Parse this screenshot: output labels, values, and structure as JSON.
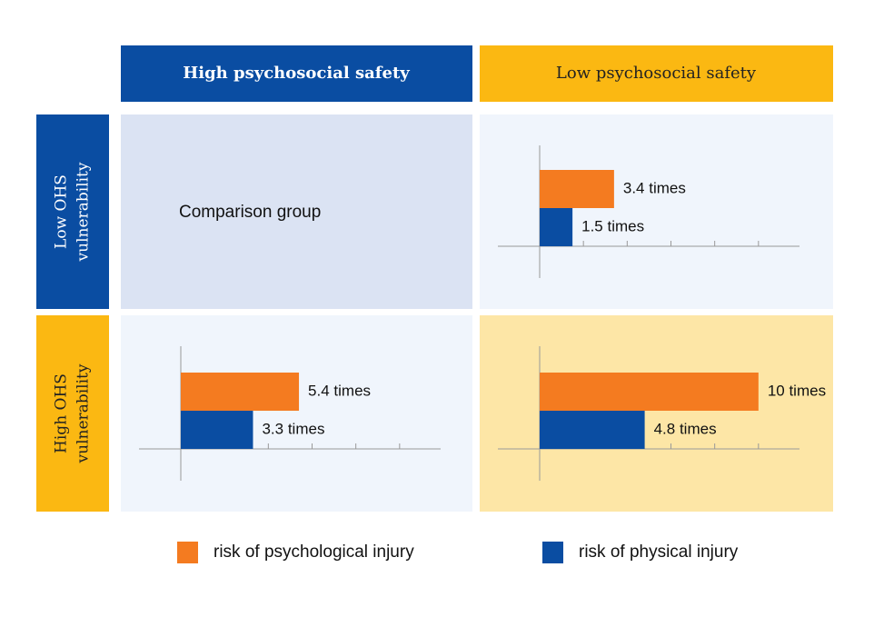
{
  "columns": [
    "High psychosocial safety",
    "Low psychosocial safety"
  ],
  "rows": [
    [
      "Low OHS",
      "vulnerability"
    ],
    [
      "High OHS",
      "vulnerability"
    ]
  ],
  "comparison_label": "Comparison group",
  "legend": [
    {
      "name": "risk of psychological injury",
      "color": "#f47b20"
    },
    {
      "name": "risk of physical injury",
      "color": "#0a4da2"
    }
  ],
  "chart_data": [
    {
      "type": "bar",
      "values": [
        3.4,
        1.5
      ],
      "value_labels": [
        "3.4 times",
        "1.5 times"
      ],
      "xlim": [
        0,
        12
      ],
      "xticks": [
        2,
        4,
        6,
        8,
        10
      ]
    },
    {
      "type": "bar",
      "values": [
        5.4,
        3.3
      ],
      "value_labels": [
        "5.4 times",
        "3.3 times"
      ],
      "xlim": [
        0,
        12
      ],
      "xticks": [
        2,
        4,
        6,
        8,
        10
      ]
    },
    {
      "type": "bar",
      "values": [
        10,
        4.8
      ],
      "value_labels": [
        "10 times",
        "4.8 times"
      ],
      "xlim": [
        0,
        12
      ],
      "xticks": [
        2,
        4,
        6,
        8,
        10
      ]
    }
  ]
}
